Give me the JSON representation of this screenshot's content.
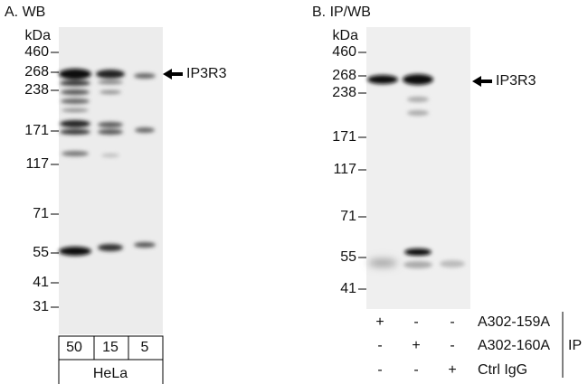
{
  "panels": [
    {
      "title": "A. WB",
      "unit": "kDa",
      "markers": [
        "460",
        "268",
        "238",
        "171",
        "117",
        "71",
        "55",
        "41",
        "31"
      ],
      "target": "IP3R3",
      "lanes": [
        "50",
        "15",
        "5"
      ],
      "sample": "HeLa"
    },
    {
      "title": "B. IP/WB",
      "unit": "kDa",
      "markers": [
        "460",
        "268",
        "238",
        "171",
        "117",
        "71",
        "55",
        "41"
      ],
      "target": "IP3R3",
      "ip_rows": [
        {
          "signs": [
            "+",
            "-",
            "-"
          ],
          "label": "A302-159A"
        },
        {
          "signs": [
            "-",
            "+",
            "-"
          ],
          "label": "A302-160A"
        },
        {
          "signs": [
            "-",
            "-",
            "+"
          ],
          "label": "Ctrl IgG"
        }
      ],
      "ip_label": "IP"
    }
  ]
}
